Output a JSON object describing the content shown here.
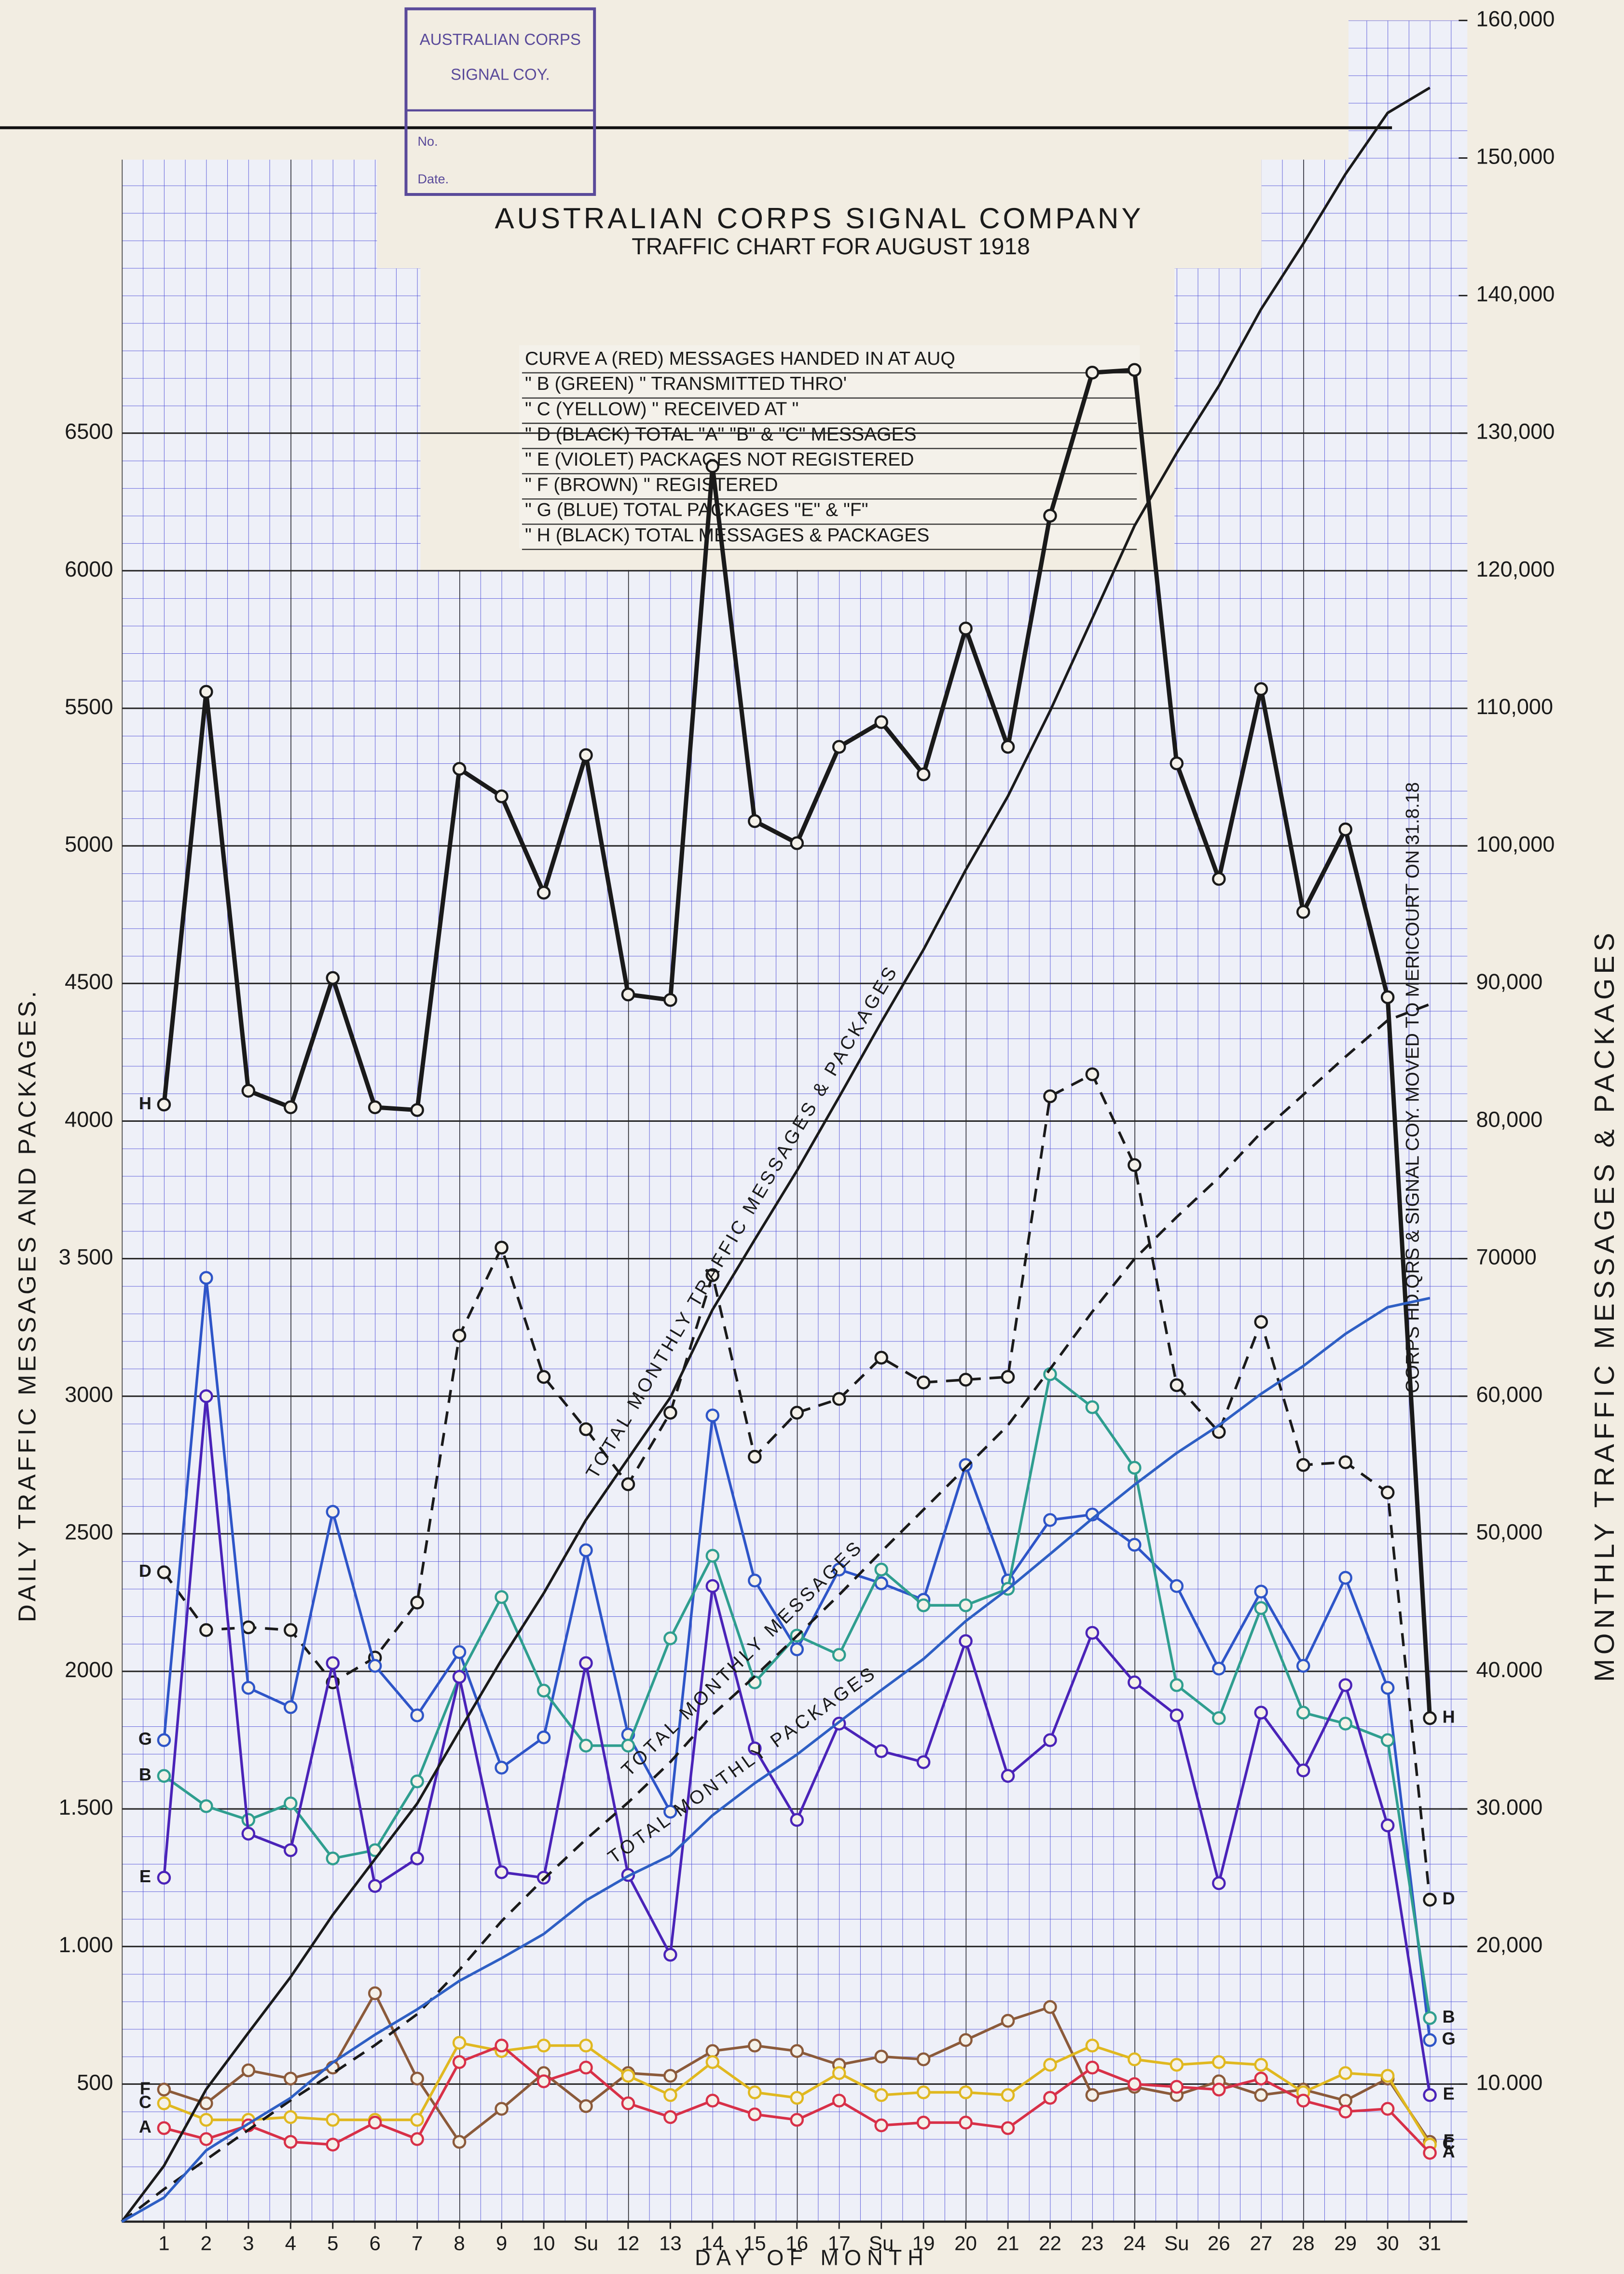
{
  "chart_data": {
    "type": "line",
    "title": "AUSTRALIAN CORPS SIGNAL COMPANY",
    "subtitle": "TRAFFIC CHART FOR AUGUST 1918",
    "xlabel": "DAY OF MONTH",
    "ylabel": "DAILY TRAFFIC MESSAGES AND PACKAGES.",
    "y2label": "MONTHLY TRAFFIC MESSAGES & PACKAGES",
    "note": "CORPS HD.QRS & SIGNAL COY. MOVED TO MERICOURT ON 31.8.18",
    "legend_lines": [
      "CURVE A (RED) MESSAGES HANDED IN AT AUQ",
      "\" B (GREEN) \" TRANSMITTED THRO'",
      "\" C (YELLOW) \" RECEIVED AT \"",
      "\" D (BLACK) TOTAL \"A\" \"B\" & \"C\" MESSAGES",
      "\" E (VIOLET) PACKAGES NOT REGISTERED",
      "\" F (BROWN) \" REGISTERED",
      "\" G (BLUE) TOTAL PACKAGES \"E\" & \"F\"",
      "\" H (BLACK) TOTAL MESSAGES & PACKAGES"
    ],
    "x": [
      0,
      1,
      2,
      3,
      4,
      5,
      6,
      7,
      8,
      9,
      10,
      11,
      12,
      13,
      14,
      15,
      16,
      17,
      18,
      19,
      20,
      21,
      22,
      23,
      24,
      25,
      26,
      27,
      28,
      29,
      30,
      31
    ],
    "xlim": [
      0,
      32
    ],
    "xticks": [
      1,
      2,
      3,
      4,
      5,
      6,
      7,
      8,
      9,
      10,
      {
        "value": 11,
        "label": "Su"
      },
      12,
      13,
      14,
      15,
      16,
      17,
      {
        "value": 18,
        "label": "Su"
      },
      19,
      20,
      21,
      22,
      23,
      24,
      {
        "value": 25,
        "label": "Su"
      },
      26,
      27,
      28,
      29,
      30,
      31
    ],
    "ylim": [
      0,
      8000
    ],
    "yticks": [
      500,
      {
        "value": 1000,
        "label": "1.000"
      },
      {
        "value": 1500,
        "label": "1.500"
      },
      2000,
      2500,
      3000,
      {
        "value": 3500,
        "label": "3 500"
      },
      4000,
      4500,
      5000,
      5500,
      6000,
      6500
    ],
    "y2lim": [
      0,
      160000
    ],
    "y2ticks": [
      {
        "value": 10000,
        "label": "10.000"
      },
      {
        "value": 20000,
        "label": "20,000"
      },
      {
        "value": 30000,
        "label": "30.000"
      },
      {
        "value": 40000,
        "label": "40.000"
      },
      {
        "value": 50000,
        "label": "50,000"
      },
      {
        "value": 60000,
        "label": "60,000"
      },
      70000,
      {
        "value": 80000,
        "label": "80,000"
      },
      {
        "value": 90000,
        "label": "90,000"
      },
      {
        "value": 100000,
        "label": "100,000"
      },
      {
        "value": 110000,
        "label": "110,000"
      },
      {
        "value": 120000,
        "label": "120,000"
      },
      {
        "value": 130000,
        "label": "130,000"
      },
      {
        "value": 140000,
        "label": "140,000"
      },
      {
        "value": 150000,
        "label": "150,000"
      },
      {
        "value": 160000,
        "label": "160,000"
      }
    ],
    "grid": true,
    "series": [
      {
        "name": "H",
        "color": "#1a1a1a",
        "values": [
          null,
          4060,
          5560,
          4110,
          4050,
          4520,
          4050,
          4040,
          5280,
          5180,
          4830,
          5330,
          4460,
          4440,
          6380,
          5090,
          5010,
          5360,
          5450,
          5260,
          5790,
          5360,
          6200,
          6720,
          6730,
          5300,
          4880,
          5570,
          4760,
          5060,
          4450,
          1830
        ]
      },
      {
        "name": "D",
        "color": "#1a1a1a",
        "dashed": true,
        "values": [
          null,
          2360,
          2150,
          2160,
          2150,
          1960,
          2050,
          2250,
          3220,
          3540,
          3070,
          2880,
          2680,
          2940,
          3440,
          2780,
          2940,
          2990,
          3140,
          3050,
          3060,
          3070,
          4090,
          4170,
          3840,
          3040,
          2870,
          3270,
          2750,
          2760,
          2650,
          1170
        ]
      },
      {
        "name": "G",
        "color": "#2e55c8",
        "values": [
          null,
          1750,
          3430,
          1940,
          1870,
          2580,
          2020,
          1840,
          2070,
          1650,
          1760,
          2440,
          1770,
          1490,
          2930,
          2330,
          2080,
          2370,
          2320,
          2260,
          2750,
          2330,
          2550,
          2570,
          2460,
          2310,
          2010,
          2290,
          2020,
          2340,
          1940,
          660
        ]
      },
      {
        "name": "B",
        "color": "#2f9e8f",
        "values": [
          null,
          1620,
          1510,
          1460,
          1520,
          1320,
          1350,
          1600,
          1980,
          2270,
          1930,
          1730,
          1730,
          2120,
          2420,
          1960,
          2130,
          2060,
          2370,
          2240,
          2240,
          2300,
          3080,
          2960,
          2740,
          1950,
          1830,
          2230,
          1850,
          1810,
          1750,
          740
        ]
      },
      {
        "name": "E",
        "color": "#4a23b8",
        "values": [
          null,
          1250,
          3000,
          1410,
          1350,
          2030,
          1220,
          1320,
          1980,
          1270,
          1250,
          2030,
          1260,
          970,
          2310,
          1720,
          1460,
          1810,
          1710,
          1670,
          2110,
          1620,
          1750,
          2140,
          1960,
          1840,
          1230,
          1850,
          1640,
          1950,
          1440,
          460
        ]
      },
      {
        "name": "F",
        "color": "#8b5a3a",
        "values": [
          null,
          480,
          430,
          550,
          520,
          560,
          830,
          520,
          290,
          410,
          540,
          420,
          540,
          530,
          620,
          640,
          620,
          570,
          600,
          590,
          660,
          730,
          780,
          460,
          490,
          460,
          510,
          460,
          480,
          440,
          520,
          290
        ]
      },
      {
        "name": "C",
        "color": "#e0b820",
        "values": [
          null,
          430,
          370,
          370,
          380,
          370,
          370,
          370,
          650,
          620,
          640,
          640,
          530,
          460,
          580,
          470,
          450,
          540,
          460,
          470,
          470,
          460,
          570,
          640,
          590,
          570,
          580,
          570,
          470,
          540,
          530,
          280
        ]
      },
      {
        "name": "A",
        "color": "#d83048",
        "values": [
          null,
          340,
          300,
          350,
          290,
          280,
          360,
          300,
          580,
          640,
          510,
          560,
          430,
          380,
          440,
          390,
          370,
          440,
          350,
          360,
          360,
          340,
          450,
          560,
          500,
          490,
          480,
          520,
          440,
          400,
          410,
          250
        ]
      },
      {
        "name": "TOTAL MONTHLY TRAFFIC MESSAGES & PACKAGES",
        "color": "#1a1a1a",
        "axis": "y2",
        "values": [
          0,
          4060,
          9620,
          13730,
          17780,
          22300,
          26350,
          30390,
          35670,
          40850,
          45680,
          51010,
          55470,
          59910,
          66290,
          71380,
          76390,
          81750,
          87200,
          92460,
          98250,
          103610,
          109810,
          116530,
          123260,
          128560,
          133440,
          139010,
          143770,
          148830,
          153280,
          155110
        ]
      },
      {
        "name": "TOTAL MONTHLY MESSAGES",
        "color": "#1a1a1a",
        "axis": "y2",
        "dashed": true,
        "values": [
          0,
          2360,
          4510,
          6670,
          8820,
          10780,
          12830,
          15080,
          18300,
          21840,
          24910,
          27790,
          30470,
          33410,
          36850,
          39630,
          42570,
          45560,
          48700,
          51750,
          54810,
          57880,
          61970,
          66140,
          69980,
          73020,
          75890,
          79160,
          81910,
          84670,
          87320,
          88490
        ]
      },
      {
        "name": "TOTAL MONTHLY PACKAGES",
        "color": "#2e5fc4",
        "axis": "y2",
        "values": [
          0,
          1750,
          5180,
          7120,
          8990,
          11570,
          13590,
          15430,
          17500,
          19150,
          20910,
          23350,
          25120,
          26610,
          29540,
          31870,
          33950,
          36320,
          38640,
          40900,
          43650,
          45980,
          48530,
          51100,
          53560,
          55870,
          57880,
          60170,
          62190,
          64530,
          66470,
          67130
        ]
      }
    ]
  },
  "stamp": {
    "lines": [
      "AUSTRALIAN CORPS",
      "SIGNAL COY.",
      "No.",
      "Date."
    ]
  }
}
